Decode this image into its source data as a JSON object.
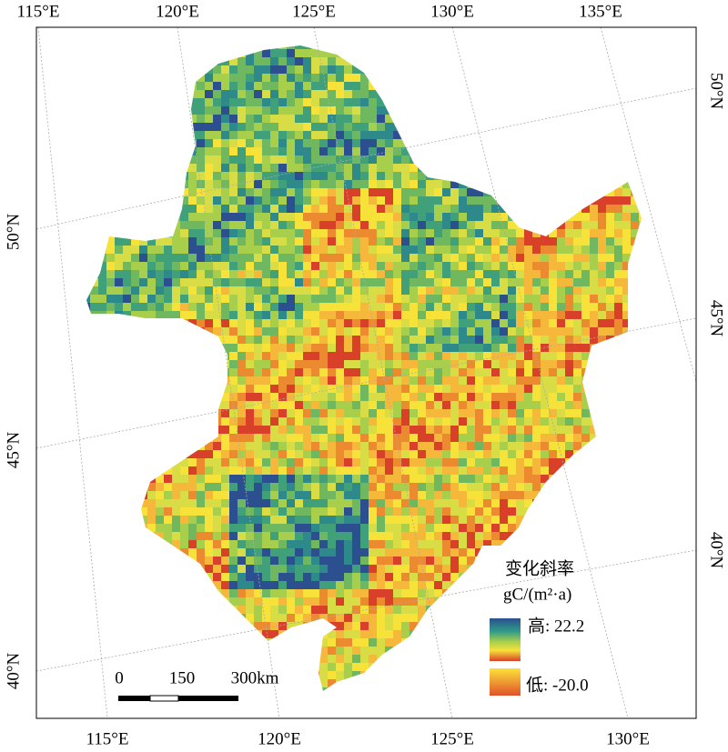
{
  "map": {
    "top_labels": [
      "115°E",
      "120°E",
      "125°E",
      "130°E",
      "135°E"
    ],
    "bottom_labels": [
      "115°E",
      "120°E",
      "125°E",
      "130°E"
    ],
    "left_labels": [
      "50°N",
      "45°N",
      "40°N"
    ],
    "right_labels": [
      "50°N",
      "45°N",
      "40°N"
    ],
    "legend": {
      "title": "变化斜率",
      "unit": "gC/(m²·a)",
      "high_label": "高: 22.2",
      "low_label": "低: -20.0"
    },
    "scale_bar": {
      "labels": [
        "0",
        "150",
        "300km"
      ]
    }
  }
}
